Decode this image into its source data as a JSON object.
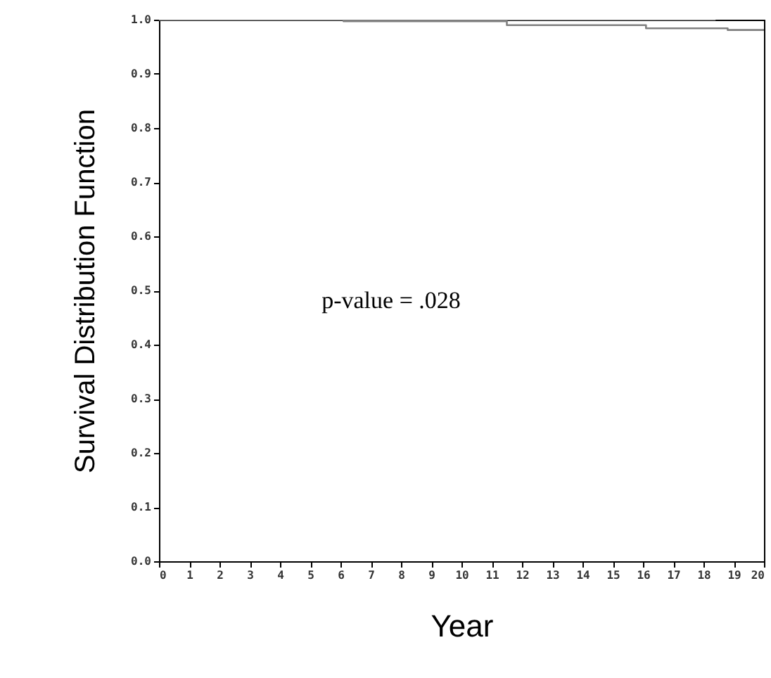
{
  "chart_data": {
    "type": "step",
    "xlabel": "Year",
    "ylabel": "Survival Distribution Function",
    "series": [
      {
        "color": "#808080",
        "x": [
          0,
          18.4
        ],
        "values": [
          1,
          1
        ]
      },
      {
        "color": "#808080",
        "x": [
          0,
          6.1,
          11.5,
          16.1,
          18.8,
          20
        ],
        "values": [
          1,
          0.997,
          0.99,
          0.984,
          0.981,
          0.981
        ]
      }
    ],
    "xlim": [
      0,
      20
    ],
    "xticks": [
      0,
      1,
      2,
      3,
      4,
      5,
      6,
      7,
      8,
      9,
      10,
      11,
      12,
      13,
      14,
      15,
      16,
      17,
      18,
      19,
      20
    ],
    "ylim": [
      0,
      1
    ],
    "yticks": [
      {
        "value": 0,
        "label": "0.0"
      },
      {
        "value": 0.1,
        "label": "0.1"
      },
      {
        "value": 0.2,
        "label": "0.2"
      },
      {
        "value": 0.3,
        "label": "0.3"
      },
      {
        "value": 0.4,
        "label": "0.4"
      },
      {
        "value": 0.5,
        "label": "0.5"
      },
      {
        "value": 0.6,
        "label": "0.6"
      },
      {
        "value": 0.7,
        "label": "0.7"
      },
      {
        "value": 0.8,
        "label": "0.8"
      },
      {
        "value": 0.9,
        "label": "0.9"
      },
      {
        "value": 1,
        "label": "1.0"
      }
    ],
    "annotations": [
      "p-value = .028"
    ],
    "line_style": "solid"
  }
}
